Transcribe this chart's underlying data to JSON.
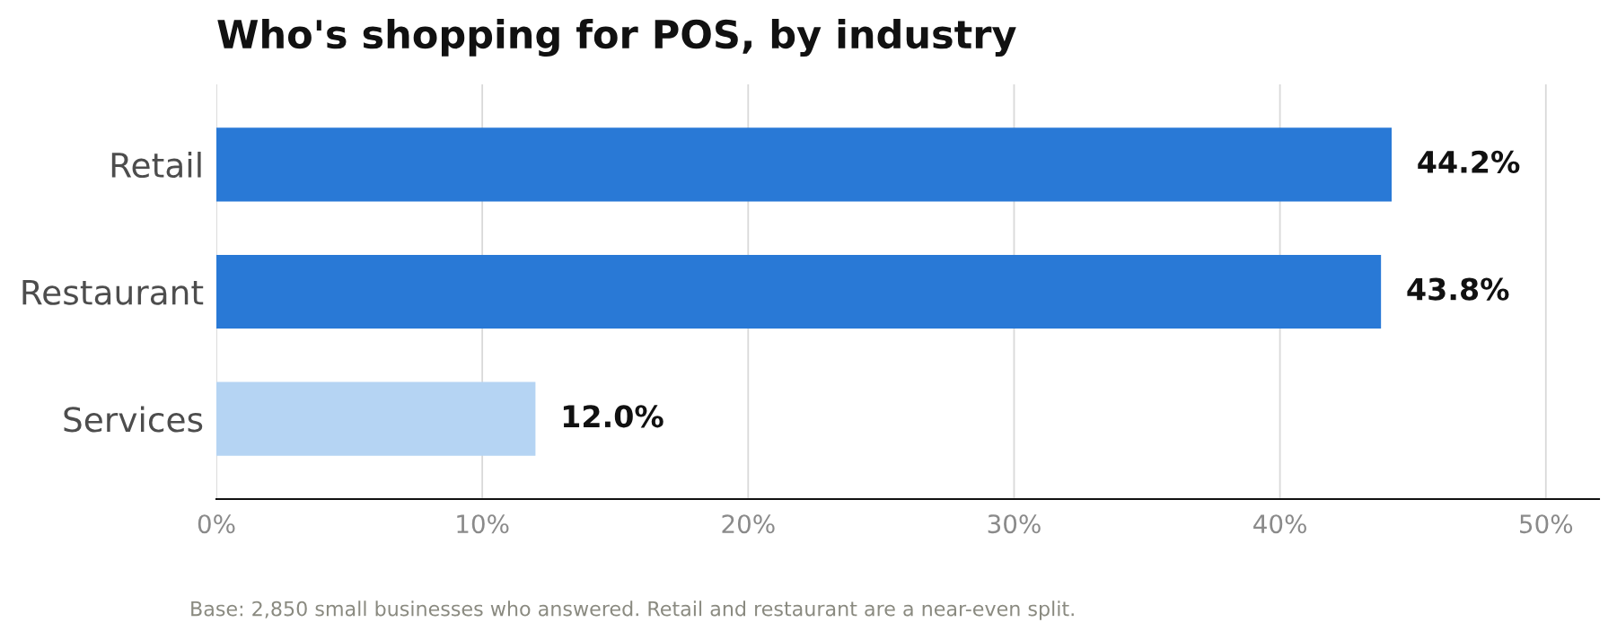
{
  "chart_data": {
    "type": "bar",
    "orientation": "horizontal",
    "title": "Who's shopping for POS, by industry",
    "categories": [
      "Retail",
      "Restaurant",
      "Services"
    ],
    "values": [
      44.2,
      43.8,
      12.0
    ],
    "colors": [
      "#2979d6",
      "#2979d6",
      "#b5d4f3"
    ],
    "value_labels": [
      "44.2%",
      "43.8%",
      "12.0%"
    ],
    "xlim": [
      0,
      52
    ],
    "xticks": [
      {
        "value": 0,
        "label": "0%"
      },
      {
        "value": 10,
        "label": "10%"
      },
      {
        "value": 20,
        "label": "20%"
      },
      {
        "value": 30,
        "label": "30%"
      },
      {
        "value": 40,
        "label": "40%"
      },
      {
        "value": 50,
        "label": "50%"
      }
    ],
    "grid": "x",
    "annotations": [
      "Base: 2,850 small businesses who answered. Retail and restaurant are a near-even split."
    ]
  }
}
